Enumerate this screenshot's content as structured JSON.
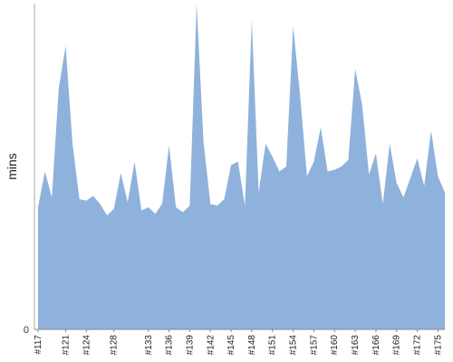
{
  "chart_data": {
    "type": "area",
    "ylabel": "mins",
    "ylim": [
      0,
      100
    ],
    "y_ticks": [
      0
    ],
    "grid": false,
    "fill_color": "#8fb2dc",
    "x": [
      "#117",
      "#118",
      "#119",
      "#120",
      "#121",
      "#122",
      "#123",
      "#124",
      "#125",
      "#126",
      "#127",
      "#128",
      "#129",
      "#130",
      "#131",
      "#132",
      "#133",
      "#134",
      "#135",
      "#136",
      "#137",
      "#138",
      "#139",
      "#140",
      "#141",
      "#142",
      "#143",
      "#144",
      "#145",
      "#146",
      "#147",
      "#148",
      "#149",
      "#150",
      "#151",
      "#152",
      "#153",
      "#154",
      "#155",
      "#156",
      "#157",
      "#158",
      "#159",
      "#160",
      "#161",
      "#162",
      "#163",
      "#164",
      "#165",
      "#166",
      "#167",
      "#168",
      "#169",
      "#170",
      "#171",
      "#172",
      "#173",
      "#174",
      "#175",
      "#176"
    ],
    "x_tick_labels": [
      "#117",
      "#121",
      "#124",
      "#128",
      "#133",
      "#136",
      "#139",
      "#142",
      "#145",
      "#148",
      "#151",
      "#154",
      "#157",
      "#160",
      "#163",
      "#166",
      "#169",
      "#172",
      "#175"
    ],
    "values": [
      37.5,
      48.5,
      40.5,
      74,
      87,
      57,
      40,
      39.5,
      41,
      38.5,
      35,
      37,
      48,
      39,
      51.5,
      36.5,
      37.5,
      35.5,
      38.5,
      56.5,
      37.5,
      36,
      38,
      100,
      57.5,
      38.5,
      38,
      40,
      50.5,
      51.5,
      38,
      95,
      42,
      57,
      53,
      48.5,
      50,
      93,
      72,
      47,
      51.5,
      62,
      48.5,
      49,
      50,
      52,
      80,
      69,
      47.5,
      54,
      38.5,
      57,
      45,
      40.5,
      46.5,
      52.5,
      44,
      61,
      47,
      42
    ]
  }
}
